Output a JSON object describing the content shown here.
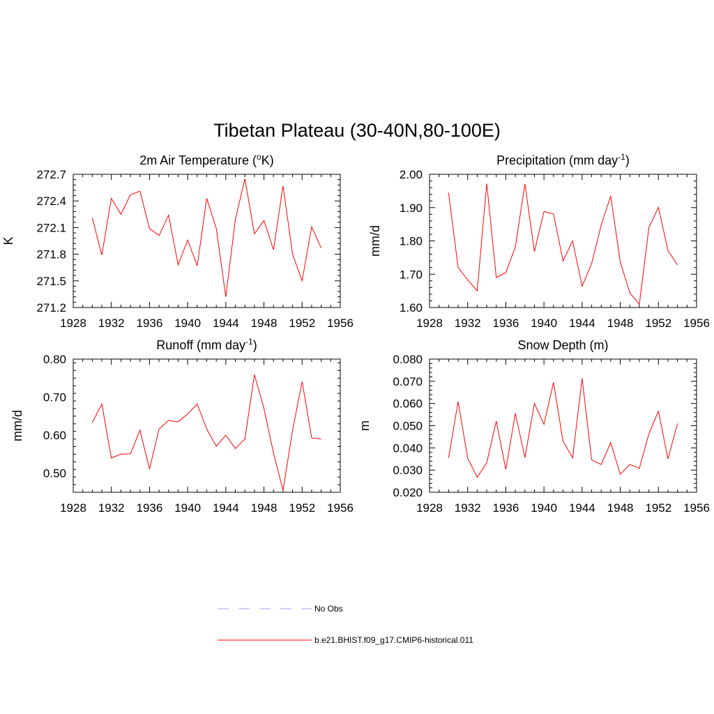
{
  "title": "Tibetan Plateau (30-40N,80-100E)",
  "legend": [
    {
      "label": "No Obs",
      "color": "#a0a0ff",
      "dash": true
    },
    {
      "label": "b.e21.BHIST.f09_g17.CMIP6-historical.011",
      "color": "#ff0000",
      "dash": false
    }
  ],
  "chart_data": [
    {
      "type": "line",
      "title": "2m Air Temperature (",
      "title_sup": "o",
      "title_after": "K)",
      "ylabel": "K",
      "xlim": [
        1928,
        1956
      ],
      "xticks": [
        "1928",
        "1932",
        "1936",
        "1940",
        "1944",
        "1948",
        "1952",
        "1956"
      ],
      "ylim": [
        271.2,
        272.7
      ],
      "yticks": [
        "271.2",
        "271.5",
        "271.8",
        "272.1",
        "272.4",
        "272.7"
      ],
      "series": [
        {
          "color": "#ff0000",
          "x": [
            1930,
            1931,
            1932,
            1933,
            1934,
            1935,
            1936,
            1937,
            1938,
            1939,
            1940,
            1941,
            1942,
            1943,
            1944,
            1945,
            1946,
            1947,
            1948,
            1949,
            1950,
            1951,
            1952,
            1953,
            1954
          ],
          "values": [
            272.21,
            271.79,
            272.43,
            272.25,
            272.47,
            272.51,
            272.09,
            272.01,
            272.24,
            271.68,
            271.96,
            271.67,
            272.43,
            272.09,
            271.32,
            272.19,
            272.65,
            272.03,
            272.18,
            271.85,
            272.57,
            271.8,
            271.5,
            272.11,
            271.87
          ]
        }
      ]
    },
    {
      "type": "line",
      "title": "Precipitation (mm day",
      "title_sup": "-1",
      "title_after": ")",
      "ylabel": "mm/d",
      "xlim": [
        1928,
        1956
      ],
      "xticks": [
        "1928",
        "1932",
        "1936",
        "1940",
        "1944",
        "1948",
        "1952",
        "1956"
      ],
      "ylim": [
        1.6,
        2.0
      ],
      "yticks": [
        "1.60",
        "1.70",
        "1.80",
        "1.90",
        "2.00"
      ],
      "series": [
        {
          "color": "#ff0000",
          "x": [
            1930,
            1931,
            1932,
            1933,
            1934,
            1935,
            1936,
            1937,
            1938,
            1939,
            1940,
            1941,
            1942,
            1943,
            1944,
            1945,
            1946,
            1947,
            1948,
            1949,
            1950,
            1951,
            1952,
            1953,
            1954
          ],
          "values": [
            1.945,
            1.72,
            1.683,
            1.65,
            1.972,
            1.69,
            1.705,
            1.782,
            1.971,
            1.768,
            1.888,
            1.881,
            1.74,
            1.8,
            1.664,
            1.732,
            1.848,
            1.935,
            1.737,
            1.644,
            1.609,
            1.84,
            1.901,
            1.771,
            1.728
          ]
        }
      ]
    },
    {
      "type": "line",
      "title": "Runoff (mm day",
      "title_sup": "-1",
      "title_after": ")",
      "ylabel": "mm/d",
      "xlim": [
        1928,
        1956
      ],
      "xticks": [
        "1928",
        "1932",
        "1936",
        "1940",
        "1944",
        "1948",
        "1952",
        "1956"
      ],
      "ylim": [
        0.45,
        0.8
      ],
      "yticks": [
        "0.50",
        "0.60",
        "0.70",
        "0.80"
      ],
      "series": [
        {
          "color": "#ff0000",
          "x": [
            1930,
            1931,
            1932,
            1933,
            1934,
            1935,
            1936,
            1937,
            1938,
            1939,
            1940,
            1941,
            1942,
            1943,
            1944,
            1945,
            1946,
            1947,
            1948,
            1949,
            1950,
            1951,
            1952,
            1953,
            1954
          ],
          "values": [
            0.633,
            0.682,
            0.54,
            0.55,
            0.551,
            0.613,
            0.511,
            0.616,
            0.639,
            0.635,
            0.656,
            0.682,
            0.616,
            0.571,
            0.6,
            0.565,
            0.59,
            0.759,
            0.67,
            0.553,
            0.455,
            0.613,
            0.741,
            0.593,
            0.59
          ]
        }
      ]
    },
    {
      "type": "line",
      "title": "Snow Depth (m)",
      "title_sup": "",
      "title_after": "",
      "ylabel": "m",
      "xlim": [
        1928,
        1956
      ],
      "xticks": [
        "1928",
        "1932",
        "1936",
        "1940",
        "1944",
        "1948",
        "1952",
        "1956"
      ],
      "ylim": [
        0.02,
        0.08
      ],
      "yticks": [
        "0.020",
        "0.030",
        "0.040",
        "0.050",
        "0.060",
        "0.070",
        "0.080"
      ],
      "series": [
        {
          "color": "#ff0000",
          "x": [
            1930,
            1931,
            1932,
            1933,
            1934,
            1935,
            1936,
            1937,
            1938,
            1939,
            1940,
            1941,
            1942,
            1943,
            1944,
            1945,
            1946,
            1947,
            1948,
            1949,
            1950,
            1951,
            1952,
            1953,
            1954
          ],
          "values": [
            0.0355,
            0.0609,
            0.0354,
            0.0268,
            0.0333,
            0.0521,
            0.0303,
            0.0556,
            0.0356,
            0.06,
            0.0506,
            0.0695,
            0.043,
            0.0355,
            0.0713,
            0.0346,
            0.0325,
            0.0424,
            0.0281,
            0.0325,
            0.0308,
            0.0463,
            0.0566,
            0.035,
            0.051
          ]
        }
      ]
    }
  ]
}
